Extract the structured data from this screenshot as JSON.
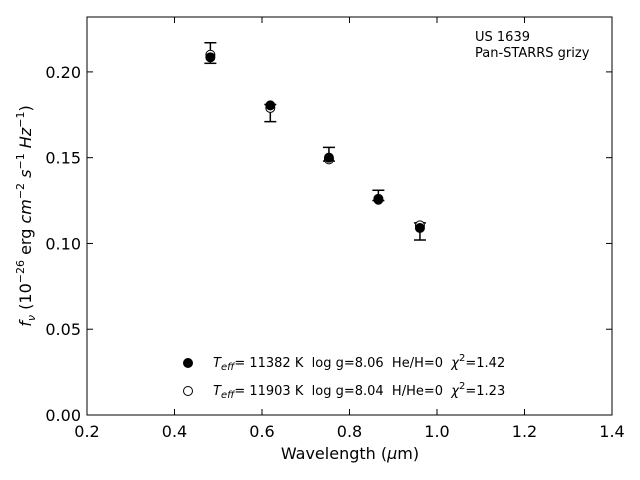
{
  "chart_data": {
    "type": "scatter",
    "title": "",
    "xlabel": "Wavelength (μm)",
    "ylabel": "f_ν (10^-26 erg cm^-2 s^-1 Hz^-1)",
    "xlim": [
      0.2,
      1.4
    ],
    "ylim": [
      0.0,
      0.232
    ],
    "x_ticks": [
      0.2,
      0.4,
      0.6,
      0.8,
      1.0,
      1.2,
      1.4
    ],
    "x_tick_labels": [
      "0.2",
      "0.4",
      "0.6",
      "0.8",
      "1.0",
      "1.2",
      "1.4"
    ],
    "y_ticks": [
      0.0,
      0.05,
      0.1,
      0.15,
      0.2
    ],
    "y_tick_labels": [
      "0.00",
      "0.05",
      "0.10",
      "0.15",
      "0.20"
    ],
    "grid": false,
    "annotation": {
      "line1": "US 1639",
      "line2": "Pan-STARRS grizy"
    },
    "observed": {
      "x": [
        0.482,
        0.619,
        0.753,
        0.866,
        0.961
      ],
      "y": [
        0.211,
        0.176,
        0.152,
        0.128,
        0.107
      ],
      "yerr": [
        0.006,
        0.005,
        0.004,
        0.003,
        0.005
      ]
    },
    "series": [
      {
        "name": "T_eff= 11382 K  log g=8.06  He/H=0  χ²=1.42",
        "marker": "filled-circle",
        "x": [
          0.482,
          0.619,
          0.753,
          0.866,
          0.961
        ],
        "y": [
          0.2085,
          0.1805,
          0.15,
          0.126,
          0.109
        ]
      },
      {
        "name": "T_eff= 11903 K  log g=8.04  H/He=0  χ²=1.23",
        "marker": "open-circle",
        "x": [
          0.482,
          0.619,
          0.753,
          0.866,
          0.961
        ],
        "y": [
          0.21,
          0.179,
          0.149,
          0.1255,
          0.1105
        ]
      }
    ],
    "legend": {
      "placement": "lower-center",
      "entries": [
        {
          "teff_label": "T",
          "teff_sub": "eff",
          "rest": "= 11382 K  log g=8.06  He/H=0  ",
          "chi": "χ",
          "chi_sup": "2",
          "chi_val": "=1.42"
        },
        {
          "teff_label": "T",
          "teff_sub": "eff",
          "rest": "= 11903 K  log g=8.04  H/He=0  ",
          "chi": "χ",
          "chi_sup": "2",
          "chi_val": "=1.23"
        }
      ]
    },
    "colors": {
      "marker": "#000000",
      "axis": "#000000",
      "background": "#ffffff"
    }
  }
}
